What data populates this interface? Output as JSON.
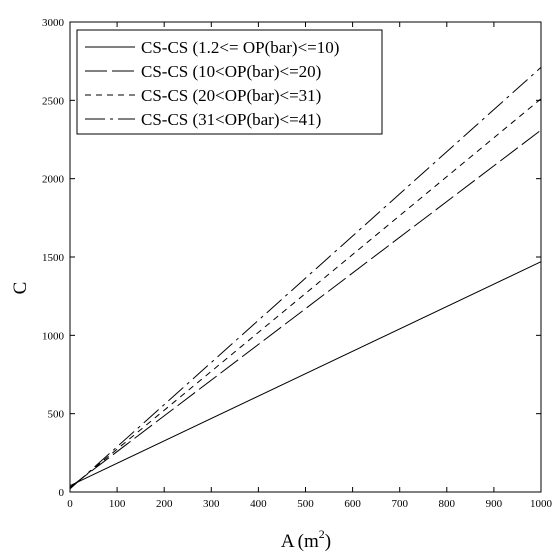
{
  "chart_data": {
    "type": "line",
    "xlabel": "A",
    "xlabel_unit_base": "(m",
    "xlabel_unit_exp": "2",
    "xlabel_unit_close": ")",
    "ylabel": "C",
    "xlim": [
      0,
      1000
    ],
    "ylim": [
      0,
      3000
    ],
    "x_ticks": [
      0,
      100,
      200,
      300,
      400,
      500,
      600,
      700,
      800,
      900,
      1000
    ],
    "y_ticks": [
      0,
      500,
      1000,
      1500,
      2000,
      2500,
      3000
    ],
    "grid": false,
    "legend_position": "top-left",
    "series": [
      {
        "name": "CS-CS (1.2<= OP(bar)<=10)",
        "style": "solid",
        "x": [
          0,
          1000
        ],
        "y": [
          40,
          1470
        ]
      },
      {
        "name": "CS-CS (10<OP(bar)<=20)",
        "style": "longdash",
        "x": [
          0,
          1000
        ],
        "y": [
          30,
          2310
        ]
      },
      {
        "name": "CS-CS (20<OP(bar)<=31)",
        "style": "shortdash",
        "x": [
          0,
          1000
        ],
        "y": [
          25,
          2510
        ]
      },
      {
        "name": "CS-CS (31<OP(bar)<=41)",
        "style": "dashdot",
        "x": [
          0,
          1000
        ],
        "y": [
          20,
          2710
        ]
      }
    ]
  }
}
